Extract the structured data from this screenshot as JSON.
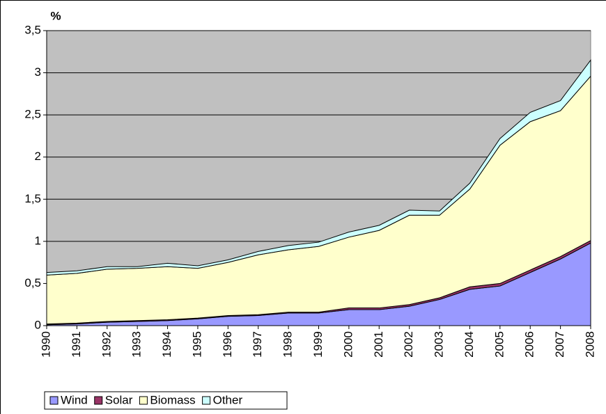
{
  "chart_data": {
    "type": "stacked-area",
    "y_label": "%",
    "categories": [
      "1990",
      "1991",
      "1992",
      "1993",
      "1994",
      "1995",
      "1996",
      "1997",
      "1998",
      "1999",
      "2000",
      "2001",
      "2002",
      "2003",
      "2004",
      "2005",
      "2006",
      "2007",
      "2008"
    ],
    "series": [
      {
        "name": "Wind",
        "color": "#9999ff",
        "values": [
          0.01,
          0.02,
          0.04,
          0.05,
          0.06,
          0.08,
          0.11,
          0.12,
          0.15,
          0.15,
          0.19,
          0.19,
          0.23,
          0.31,
          0.43,
          0.47,
          0.63,
          0.79,
          0.98
        ]
      },
      {
        "name": "Solar",
        "color": "#993366",
        "values": [
          0.01,
          0.01,
          0.01,
          0.01,
          0.01,
          0.01,
          0.01,
          0.01,
          0.01,
          0.01,
          0.02,
          0.02,
          0.02,
          0.02,
          0.03,
          0.03,
          0.03,
          0.03,
          0.03
        ]
      },
      {
        "name": "Biomass",
        "color": "#ffffcc",
        "values": [
          0.58,
          0.59,
          0.62,
          0.62,
          0.63,
          0.59,
          0.63,
          0.71,
          0.74,
          0.78,
          0.84,
          0.92,
          1.06,
          0.98,
          1.16,
          1.64,
          1.76,
          1.73,
          1.95
        ]
      },
      {
        "name": "Other",
        "color": "#ccffff",
        "values": [
          0.03,
          0.03,
          0.03,
          0.02,
          0.04,
          0.03,
          0.03,
          0.04,
          0.05,
          0.05,
          0.06,
          0.06,
          0.06,
          0.05,
          0.07,
          0.08,
          0.11,
          0.12,
          0.19
        ]
      }
    ],
    "ylim": [
      0,
      3.5
    ],
    "yticks": [
      0,
      {
        "value": 0.5,
        "label": "0,5"
      },
      1,
      {
        "value": 1.5,
        "label": "1,5"
      },
      2,
      {
        "value": 2.5,
        "label": "2,5"
      },
      3,
      {
        "value": 3.5,
        "label": "3,5"
      }
    ],
    "grid": true,
    "plot_background": "#c0c0c0",
    "legend": "bottom-left"
  }
}
